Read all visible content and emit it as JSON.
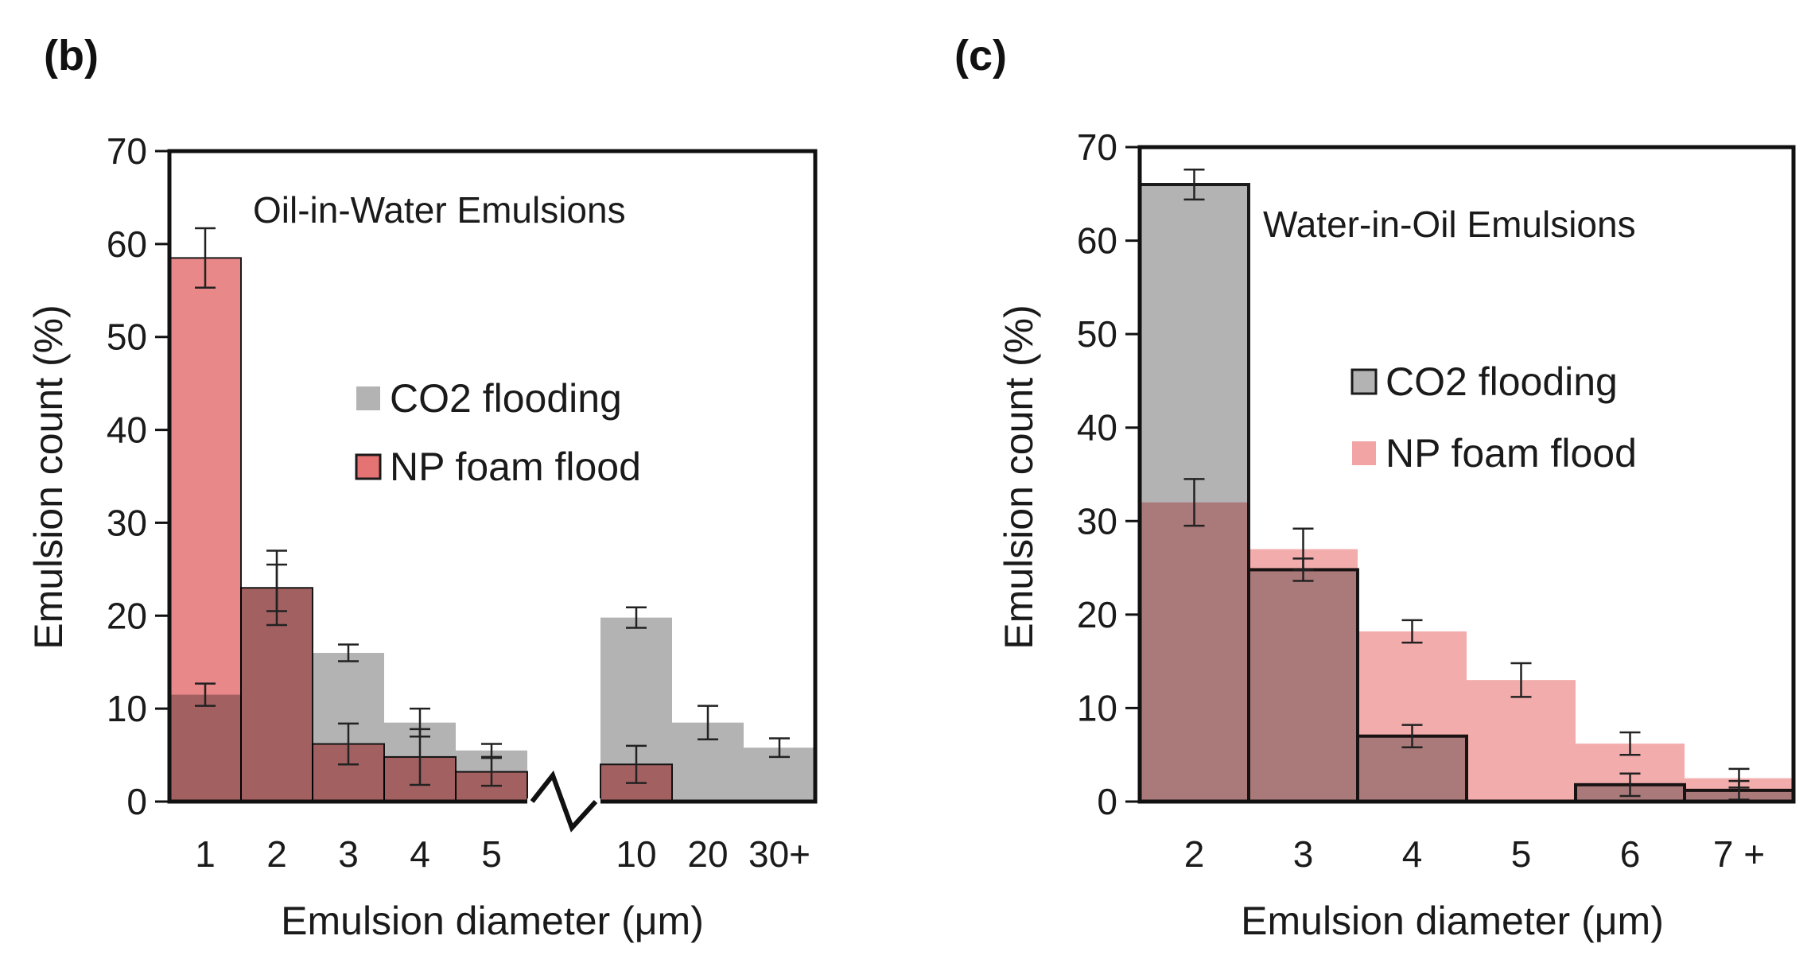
{
  "chart_data": [
    {
      "type": "bar",
      "panel_label": "(b)",
      "title": "Oil-in-Water Emulsions",
      "xlabel": "Emulsion diameter (μm)",
      "ylabel": "Emulsion count (%)",
      "ylim": [
        0,
        70
      ],
      "yticks": [
        0,
        10,
        20,
        30,
        40,
        50,
        60,
        70
      ],
      "categories": [
        "1",
        "2",
        "3",
        "4",
        "5",
        "10",
        "20",
        "30+"
      ],
      "axis_break_after": "5",
      "legend_position": "right-middle",
      "series": [
        {
          "name": "CO2 flooding",
          "color": "#b3b3b3",
          "values": [
            11.5,
            23,
            16,
            8.5,
            5.5,
            19.8,
            8.5,
            5.8
          ],
          "errors": [
            1.2,
            2.5,
            0.9,
            1.5,
            0.7,
            1.1,
            1.8,
            1.0
          ]
        },
        {
          "name": "NP foam flood",
          "color": "#e57373",
          "values": [
            58.5,
            23,
            6.2,
            4.8,
            3.2,
            4,
            0,
            0
          ],
          "errors": [
            3.2,
            4,
            2.2,
            3,
            1.5,
            2,
            0,
            0
          ]
        }
      ]
    },
    {
      "type": "bar",
      "panel_label": "(c)",
      "title": "Water-in-Oil Emulsions",
      "xlabel": "Emulsion diameter (μm)",
      "ylabel": "Emulsion count (%)",
      "ylim": [
        0,
        70
      ],
      "yticks": [
        0,
        10,
        20,
        30,
        40,
        50,
        60,
        70
      ],
      "categories": [
        "2",
        "3",
        "4",
        "5",
        "6",
        "7 +"
      ],
      "legend_position": "right-middle",
      "series": [
        {
          "name": "CO2 flooding",
          "color": "#b3b3b3",
          "values": [
            66,
            24.8,
            7,
            0,
            1.8,
            1.2
          ],
          "errors": [
            1.6,
            1.2,
            1.2,
            0,
            1.2,
            1.0
          ]
        },
        {
          "name": "NP foam flood",
          "color": "#f2a3a3",
          "values": [
            32,
            27,
            18.2,
            13,
            6.2,
            2.5
          ],
          "errors": [
            2.5,
            2.2,
            1.2,
            1.8,
            1.2,
            1.0
          ]
        }
      ]
    }
  ]
}
